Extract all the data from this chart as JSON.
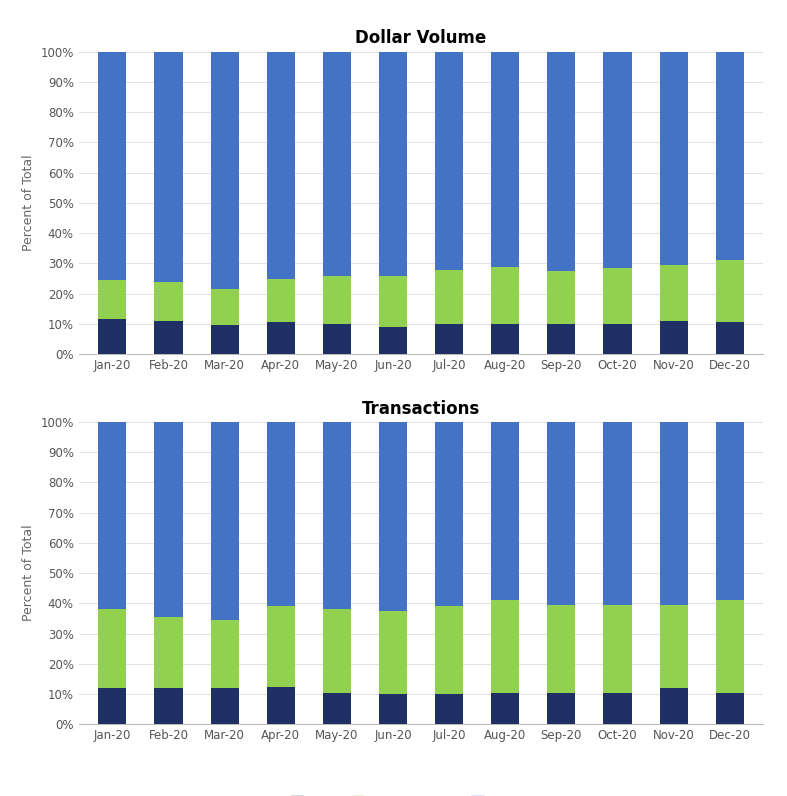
{
  "months": [
    "Jan-20",
    "Feb-20",
    "Mar-20",
    "Apr-20",
    "May-20",
    "Jun-20",
    "Jul-20",
    "Aug-20",
    "Sep-20",
    "Oct-20",
    "Nov-20",
    "Dec-20"
  ],
  "dollar_volume": {
    "ATS": [
      11.5,
      11.0,
      9.5,
      10.5,
      10.0,
      9.0,
      10.0,
      10.0,
      10.0,
      10.0,
      11.0,
      10.5
    ],
    "Non_ATS_OTC": [
      13.0,
      13.0,
      12.0,
      14.5,
      16.0,
      17.0,
      18.0,
      19.0,
      17.5,
      18.5,
      18.5,
      20.5
    ],
    "Exchange": [
      75.5,
      76.0,
      78.5,
      75.0,
      74.0,
      74.0,
      72.0,
      71.0,
      72.5,
      71.5,
      70.5,
      69.0
    ]
  },
  "transactions": {
    "ATS": [
      12.0,
      12.0,
      12.0,
      12.5,
      10.5,
      10.0,
      10.0,
      10.5,
      10.5,
      10.5,
      12.0,
      10.5
    ],
    "Non_ATS_OTC": [
      26.0,
      23.5,
      22.5,
      26.5,
      27.5,
      27.5,
      29.0,
      30.5,
      29.0,
      29.0,
      27.5,
      30.5
    ],
    "Exchange": [
      62.0,
      64.5,
      65.5,
      61.0,
      62.0,
      62.5,
      61.0,
      59.0,
      60.5,
      60.5,
      60.5,
      59.0
    ]
  },
  "colors": {
    "ATS": "#1f3164",
    "Non_ATS_OTC": "#92d050",
    "Exchange": "#4472c4"
  },
  "title1": "Dollar Volume",
  "title2": "Transactions",
  "ylabel": "Percent of Total",
  "background_color": "#ffffff",
  "fig_width": 7.87,
  "fig_height": 7.96
}
